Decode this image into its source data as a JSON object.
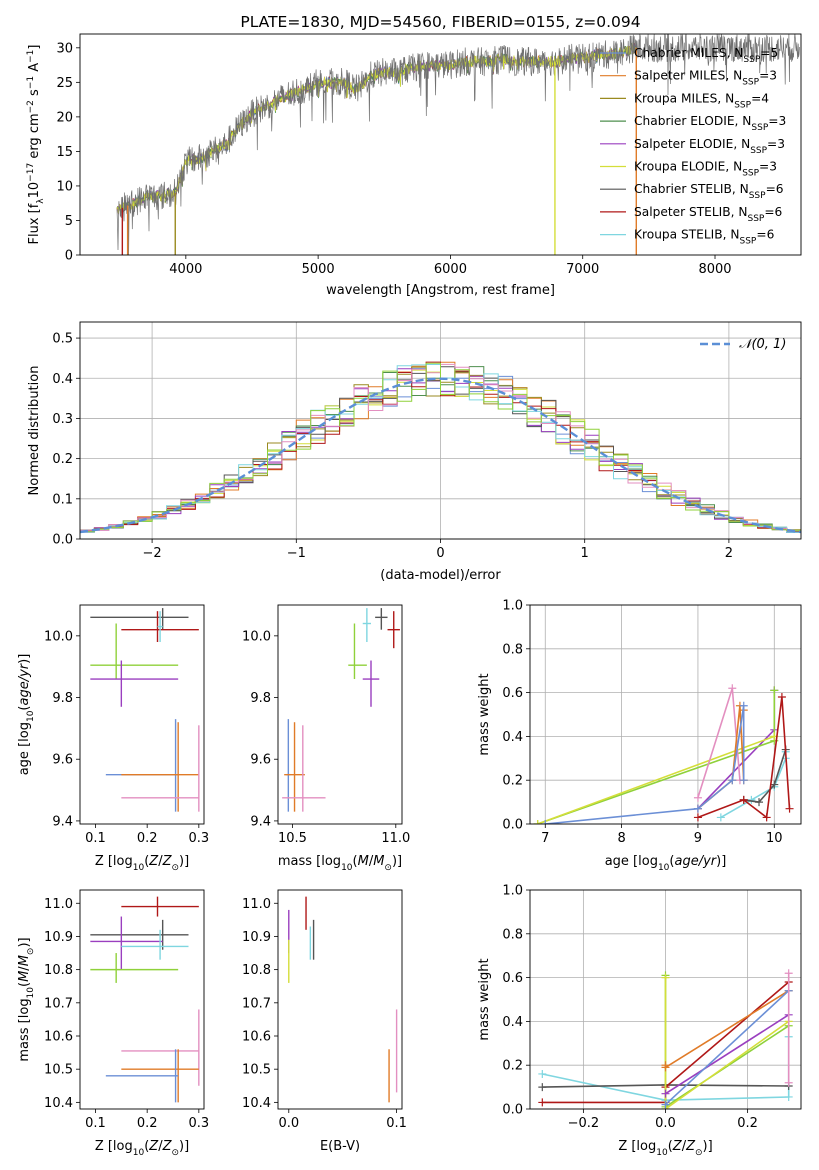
{
  "colors": {
    "chabrier_miles": "#6b8fd6",
    "salpeter_miles": "#e07b28",
    "kroupa_miles": "#9a8a20",
    "chabrier_elodie": "#4f8f4f",
    "salpeter_elodie": "#9a3fbf",
    "kroupa_elodie": "#d4de3a",
    "chabrier_stelib": "#555555",
    "salpeter_stelib": "#b01818",
    "kroupa_stelib": "#7fd6e0",
    "pink": "#e38fc0",
    "lime": "#8fd13a",
    "gaussian": "#5b8fd6",
    "grid": "#b0b0b0"
  },
  "chart_data": [
    {
      "id": "spectrum",
      "type": "line",
      "title": "PLATE=1830, MJD=54560, FIBERID=0155, z=0.094",
      "xlabel": "wavelength [Angstrom, rest frame]",
      "ylabel": "Flux [fλ10⁻¹⁷ erg cm⁻² s⁻¹ A⁻¹]",
      "xlim": [
        3200,
        8650
      ],
      "ylim": [
        0,
        32
      ],
      "xticks": [
        4000,
        5000,
        6000,
        7000,
        8000
      ],
      "yticks": [
        0,
        5,
        10,
        15,
        20,
        25,
        30
      ],
      "grid": false,
      "legend_position": "top-right",
      "continuum_x": [
        3480,
        3600,
        3700,
        3800,
        3920,
        4000,
        4100,
        4200,
        4300,
        4400,
        4500,
        4600,
        4700,
        4800,
        4900,
        5000,
        5100,
        5200,
        5300,
        5400,
        5500,
        5600,
        5700,
        5800,
        5900,
        6000,
        6100,
        6200,
        6300,
        6400,
        6500,
        6600,
        6700,
        6800,
        6900,
        7000,
        7100,
        7200,
        7300,
        7400
      ],
      "continuum_y": [
        6.5,
        7.5,
        8.5,
        8.5,
        9,
        13.5,
        14,
        15,
        16,
        18.5,
        20.5,
        21.5,
        22.5,
        23.5,
        24,
        25,
        25,
        25,
        24,
        26,
        26.5,
        26.5,
        27,
        27.5,
        27.5,
        27.5,
        28,
        28,
        28,
        28.5,
        28,
        28,
        28,
        28,
        28.5,
        28.5,
        29,
        29,
        29.5,
        30
      ],
      "legend": [
        "Chabrier MILES, N_SSP=5",
        "Salpeter MILES, N_SSP=3",
        "Kroupa MILES, N_SSP=4",
        "Chabrier ELODIE, N_SSP=3",
        "Salpeter ELODIE, N_SSP=3",
        "Kroupa ELODIE, N_SSP=3",
        "Chabrier STELIB, N_SSP=6",
        "Salpeter STELIB, N_SSP=6",
        "Kroupa STELIB, N_SSP=6"
      ]
    },
    {
      "id": "residuals",
      "type": "histogram",
      "xlabel": "(data-model)/error",
      "ylabel": "Normed distribution",
      "xlim": [
        -2.5,
        2.5
      ],
      "ylim": [
        0,
        0.54
      ],
      "xticks": [
        -2,
        -1,
        0,
        1,
        2
      ],
      "yticks": [
        0.0,
        0.1,
        0.2,
        0.3,
        0.4,
        0.5
      ],
      "grid": true,
      "legend": [
        "𝒩(0, 1)"
      ],
      "legend_position": "top-right",
      "bin_width": 0.1,
      "bin_start": -2.5
    },
    {
      "id": "z_age",
      "type": "errorbar",
      "xlabel": "Z [log₁₀(Z/Z⊙)]",
      "ylabel": "age  [log₁₀(age/yr)]",
      "xlim": [
        0.07,
        0.31
      ],
      "ylim": [
        9.39,
        10.1
      ],
      "xticks": [
        0.1,
        0.2,
        0.3
      ],
      "yticks": [
        9.4,
        9.6,
        9.8,
        10.0
      ],
      "grid": false,
      "points": [
        {
          "c": "chabrier_stelib",
          "x": 0.23,
          "xe": [
            0.09,
            0.28
          ],
          "y": 10.06,
          "ye": [
            10.02,
            10.09
          ]
        },
        {
          "c": "salpeter_stelib",
          "x": 0.22,
          "xe": [
            0.15,
            0.3
          ],
          "y": 10.02,
          "ye": [
            9.98,
            10.08
          ]
        },
        {
          "c": "kroupa_stelib",
          "x": 0.225,
          "xe": [
            0.22,
            0.23
          ],
          "y": 10.03,
          "ye": [
            9.98,
            10.08
          ]
        },
        {
          "c": "lime",
          "x": 0.14,
          "xe": [
            0.09,
            0.26
          ],
          "y": 9.905,
          "ye": [
            9.86,
            10.04
          ]
        },
        {
          "c": "salpeter_elodie",
          "x": 0.15,
          "xe": [
            0.09,
            0.26
          ],
          "y": 9.86,
          "ye": [
            9.77,
            9.92
          ]
        },
        {
          "c": "chabrier_miles",
          "x": 0.255,
          "xe": [
            0.12,
            0.26
          ],
          "y": 9.55,
          "ye": [
            9.43,
            9.73
          ]
        },
        {
          "c": "salpeter_miles",
          "x": 0.26,
          "xe": [
            0.15,
            0.3
          ],
          "y": 9.55,
          "ye": [
            9.43,
            9.72
          ]
        },
        {
          "c": "pink",
          "x": 0.3,
          "xe": [
            0.15,
            0.3
          ],
          "y": 9.475,
          "ye": [
            9.43,
            9.71
          ]
        }
      ]
    },
    {
      "id": "mass_age",
      "type": "errorbar",
      "xlabel": "mass [log₁₀(M/M⊙)]",
      "ylabel": "",
      "xlim": [
        10.43,
        11.03
      ],
      "ylim": [
        9.39,
        10.1
      ],
      "xticks": [
        10.5,
        11.0
      ],
      "yticks": [
        9.4,
        9.6,
        9.8,
        10.0
      ],
      "grid": false,
      "points": [
        {
          "c": "chabrier_stelib",
          "x": 10.93,
          "xe": [
            10.9,
            10.96
          ],
          "y": 10.06,
          "ye": [
            10.02,
            10.09
          ]
        },
        {
          "c": "salpeter_stelib",
          "x": 10.99,
          "xe": [
            10.96,
            11.02
          ],
          "y": 10.02,
          "ye": [
            9.96,
            10.08
          ]
        },
        {
          "c": "kroupa_stelib",
          "x": 10.86,
          "xe": [
            10.84,
            10.88
          ],
          "y": 10.04,
          "ye": [
            9.98,
            10.09
          ]
        },
        {
          "c": "lime",
          "x": 10.8,
          "xe": [
            10.77,
            10.86
          ],
          "y": 9.905,
          "ye": [
            9.86,
            10.04
          ]
        },
        {
          "c": "salpeter_elodie",
          "x": 10.88,
          "xe": [
            10.84,
            10.92
          ],
          "y": 9.86,
          "ye": [
            9.77,
            9.92
          ]
        },
        {
          "c": "chabrier_miles",
          "x": 10.48,
          "xe": [
            10.47,
            10.49
          ],
          "y": 9.55,
          "ye": [
            9.43,
            9.73
          ]
        },
        {
          "c": "salpeter_miles",
          "x": 10.51,
          "xe": [
            10.46,
            10.56
          ],
          "y": 9.55,
          "ye": [
            9.43,
            9.72
          ]
        },
        {
          "c": "pink",
          "x": 10.55,
          "xe": [
            10.45,
            10.66
          ],
          "y": 9.475,
          "ye": [
            9.43,
            9.71
          ]
        }
      ]
    },
    {
      "id": "age_weight",
      "type": "line",
      "xlabel": "age  [log₁₀(age/yr)]",
      "ylabel": "mass weight",
      "xlim": [
        6.8,
        10.35
      ],
      "ylim": [
        0,
        1.0
      ],
      "xticks": [
        7,
        8,
        9,
        10
      ],
      "yticks": [
        0.0,
        0.2,
        0.4,
        0.6,
        0.8,
        1.0
      ],
      "grid": true,
      "series": [
        {
          "c": "salpeter_elodie",
          "x": [
            9.0,
            10.0,
            10.0
          ],
          "y": [
            0.07,
            0.43,
            0.61
          ]
        },
        {
          "c": "lime",
          "x": [
            6.9,
            10.0,
            10.0
          ],
          "y": [
            0.0,
            0.38,
            0.61
          ]
        },
        {
          "c": "kroupa_elodie",
          "x": [
            6.9,
            10.0
          ],
          "y": [
            0.0,
            0.4
          ]
        },
        {
          "c": "pink",
          "x": [
            9.0,
            9.45,
            9.55
          ],
          "y": [
            0.12,
            0.62,
            0.2
          ]
        },
        {
          "c": "salpeter_miles",
          "x": [
            9.0,
            9.45,
            9.55,
            9.6,
            9.6
          ],
          "y": [
            0.07,
            0.2,
            0.54,
            0.2,
            0.52
          ]
        },
        {
          "c": "chabrier_miles",
          "x": [
            7.0,
            9.0,
            9.45,
            9.6,
            9.6
          ],
          "y": [
            0.0,
            0.07,
            0.2,
            0.54,
            0.2
          ]
        },
        {
          "c": "kroupa_stelib",
          "x": [
            9.3,
            9.7,
            10.0,
            10.15,
            10.15
          ],
          "y": [
            0.03,
            0.11,
            0.17,
            0.3,
            0.33
          ]
        },
        {
          "c": "chabrier_stelib",
          "x": [
            9.6,
            9.8,
            10.0,
            10.15
          ],
          "y": [
            0.11,
            0.1,
            0.18,
            0.34
          ]
        },
        {
          "c": "salpeter_stelib",
          "x": [
            9.0,
            9.6,
            9.9,
            10.1,
            10.2
          ],
          "y": [
            0.03,
            0.11,
            0.03,
            0.58,
            0.07
          ]
        }
      ]
    },
    {
      "id": "z_mass",
      "type": "errorbar",
      "xlabel": "Z [log₁₀(Z/Z⊙)]",
      "ylabel": "mass [log₁₀(M/M⊙)]",
      "xlim": [
        0.07,
        0.31
      ],
      "ylim": [
        10.38,
        11.04
      ],
      "xticks": [
        0.1,
        0.2,
        0.3
      ],
      "yticks": [
        10.4,
        10.5,
        10.6,
        10.7,
        10.8,
        10.9,
        11.0
      ],
      "grid": false,
      "points": [
        {
          "c": "salpeter_stelib",
          "x": 0.22,
          "xe": [
            0.15,
            0.3
          ],
          "y": 10.99,
          "ye": [
            10.96,
            11.02
          ]
        },
        {
          "c": "chabrier_stelib",
          "x": 0.23,
          "xe": [
            0.09,
            0.28
          ],
          "y": 10.905,
          "ye": [
            10.86,
            10.95
          ]
        },
        {
          "c": "salpeter_elodie",
          "x": 0.15,
          "xe": [
            0.09,
            0.23
          ],
          "y": 10.885,
          "ye": [
            10.8,
            10.96
          ]
        },
        {
          "c": "kroupa_stelib",
          "x": 0.225,
          "xe": [
            0.15,
            0.28
          ],
          "y": 10.87,
          "ye": [
            10.83,
            10.92
          ]
        },
        {
          "c": "lime",
          "x": 0.14,
          "xe": [
            0.09,
            0.26
          ],
          "y": 10.8,
          "ye": [
            10.76,
            10.85
          ]
        },
        {
          "c": "pink",
          "x": 0.3,
          "xe": [
            0.15,
            0.3
          ],
          "y": 10.555,
          "ye": [
            10.45,
            10.68
          ]
        },
        {
          "c": "salpeter_miles",
          "x": 0.26,
          "xe": [
            0.15,
            0.3
          ],
          "y": 10.5,
          "ye": [
            10.4,
            10.56
          ]
        },
        {
          "c": "chabrier_miles",
          "x": 0.255,
          "xe": [
            0.12,
            0.26
          ],
          "y": 10.48,
          "ye": [
            10.4,
            10.56
          ]
        }
      ]
    },
    {
      "id": "ebv_mass",
      "type": "errorbar",
      "xlabel": "E(B-V)",
      "ylabel": "",
      "xlim": [
        -0.01,
        0.105
      ],
      "ylim": [
        10.38,
        11.04
      ],
      "xticks": [
        0.0,
        0.1
      ],
      "yticks": [
        10.4,
        10.5,
        10.6,
        10.7,
        10.8,
        10.9,
        11.0
      ],
      "grid": false,
      "points": [
        {
          "c": "salpeter_stelib",
          "x": 0.016,
          "xe": [
            0.016,
            0.016
          ],
          "y": 10.99,
          "ye": [
            10.92,
            11.02
          ]
        },
        {
          "c": "salpeter_elodie",
          "x": 0.0,
          "xe": [
            0.0,
            0.0
          ],
          "y": 10.9,
          "ye": [
            10.85,
            10.98
          ]
        },
        {
          "c": "kroupa_stelib",
          "x": 0.02,
          "xe": [
            0.02,
            0.02
          ],
          "y": 10.88,
          "ye": [
            10.83,
            10.93
          ]
        },
        {
          "c": "chabrier_stelib",
          "x": 0.023,
          "xe": [
            0.023,
            0.023
          ],
          "y": 10.88,
          "ye": [
            10.83,
            10.95
          ]
        },
        {
          "c": "kroupa_elodie",
          "x": 0.0,
          "xe": [
            0.0,
            0.0
          ],
          "y": 10.8,
          "ye": [
            10.76,
            10.89
          ]
        },
        {
          "c": "pink",
          "x": 0.1,
          "xe": [
            0.1,
            0.1
          ],
          "y": 10.55,
          "ye": [
            10.43,
            10.68
          ]
        },
        {
          "c": "salpeter_miles",
          "x": 0.093,
          "xe": [
            0.093,
            0.093
          ],
          "y": 10.5,
          "ye": [
            10.4,
            10.56
          ]
        }
      ]
    },
    {
      "id": "z_weight",
      "type": "line",
      "xlabel": "Z [log₁₀(Z/Z⊙)]",
      "ylabel": "mass weight",
      "xlim": [
        -0.33,
        0.33
      ],
      "ylim": [
        0,
        1.0
      ],
      "xticks": [
        -0.2,
        0.0,
        0.2
      ],
      "yticks": [
        0.0,
        0.2,
        0.4,
        0.6,
        0.8,
        1.0
      ],
      "grid": true,
      "series": [
        {
          "c": "kroupa_stelib",
          "x": [
            -0.3,
            0.0,
            0.3,
            0.3
          ],
          "y": [
            0.16,
            0.04,
            0.055,
            0.33
          ]
        },
        {
          "c": "chabrier_stelib",
          "x": [
            -0.3,
            0.0,
            0.3
          ],
          "y": [
            0.1,
            0.11,
            0.105
          ]
        },
        {
          "c": "salpeter_stelib",
          "x": [
            -0.3,
            0.0,
            0.0,
            0.3
          ],
          "y": [
            0.03,
            0.03,
            0.1,
            0.58
          ]
        },
        {
          "c": "lime",
          "x": [
            0.0,
            0.0,
            0.0,
            0.3
          ],
          "y": [
            0.61,
            0.0,
            0.01,
            0.38
          ]
        },
        {
          "c": "kroupa_elodie",
          "x": [
            0.0,
            0.0,
            0.3
          ],
          "y": [
            0.6,
            0.0,
            0.4
          ]
        },
        {
          "c": "salpeter_elodie",
          "x": [
            0.0,
            0.3
          ],
          "y": [
            0.07,
            0.43
          ]
        },
        {
          "c": "salpeter_miles",
          "x": [
            0.0,
            0.0,
            0.3
          ],
          "y": [
            0.2,
            0.19,
            0.54
          ]
        },
        {
          "c": "chabrier_miles",
          "x": [
            0.0,
            0.3
          ],
          "y": [
            0.02,
            0.54
          ]
        },
        {
          "c": "pink",
          "x": [
            0.3,
            0.3
          ],
          "y": [
            0.12,
            0.62
          ]
        }
      ]
    }
  ]
}
